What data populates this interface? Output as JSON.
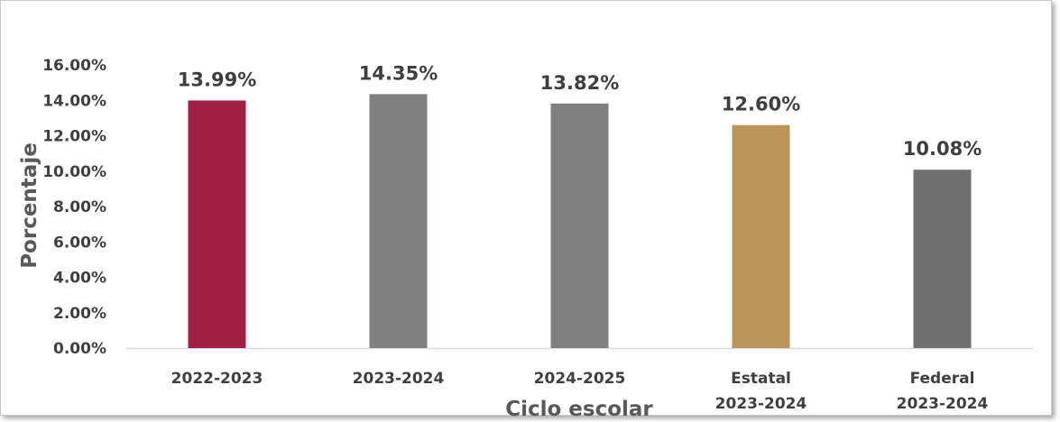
{
  "chart_data": {
    "type": "bar",
    "title": "",
    "xlabel": "Ciclo escolar",
    "ylabel": "Porcentaje",
    "ylim": [
      0,
      16
    ],
    "y_ticks": [
      "0.00%",
      "2.00%",
      "4.00%",
      "6.00%",
      "8.00%",
      "10.00%",
      "12.00%",
      "14.00%",
      "16.00%"
    ],
    "grid": false,
    "legend": "none",
    "categories": [
      [
        "2022-2023"
      ],
      [
        "2023-2024"
      ],
      [
        "2024-2025"
      ],
      [
        "Estatal",
        "2023-2024"
      ],
      [
        "Federal",
        "2023-2024"
      ]
    ],
    "values": [
      13.99,
      14.35,
      13.82,
      12.6,
      10.08
    ],
    "data_labels": [
      "13.99%",
      "14.35%",
      "13.82%",
      "12.60%",
      "10.08%"
    ],
    "bar_colors": [
      "#a11f45",
      "#808080",
      "#808080",
      "#bc955c",
      "#6f706f"
    ]
  }
}
